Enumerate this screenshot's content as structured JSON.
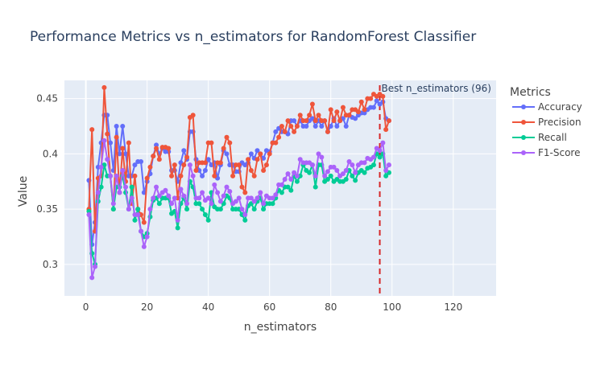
{
  "colors": {
    "background": "#ffffff",
    "plot_bg": "#e5ecf6",
    "grid": "#ffffff",
    "text": "#444444",
    "title_text": "#2a3f5f",
    "best_line": "#d62728"
  },
  "chart_data": {
    "type": "line",
    "title": "Performance Metrics vs n_estimators for RandomForest Classifier",
    "xlabel": "n_estimators",
    "ylabel": "Value",
    "xlim": [
      -7,
      134
    ],
    "ylim": [
      0.2715,
      0.4665
    ],
    "xticks": [
      0,
      20,
      40,
      60,
      80,
      100,
      120
    ],
    "xtick_labels": [
      "0",
      "20",
      "40",
      "60",
      "80",
      "100",
      "120"
    ],
    "yticks": [
      0.3,
      0.35,
      0.4,
      0.45
    ],
    "ytick_labels": [
      "0.3",
      "0.35",
      "0.4",
      "0.45"
    ],
    "grid": true,
    "legend_title": "Metrics",
    "legend_position": "right",
    "annotation": {
      "x": 96,
      "text": "Best n_estimators (96)"
    },
    "x": [
      1,
      2,
      3,
      4,
      5,
      6,
      7,
      8,
      9,
      10,
      11,
      12,
      13,
      14,
      15,
      16,
      17,
      18,
      19,
      20,
      21,
      22,
      23,
      24,
      25,
      26,
      27,
      28,
      29,
      30,
      31,
      32,
      33,
      34,
      35,
      36,
      37,
      38,
      39,
      40,
      41,
      42,
      43,
      44,
      45,
      46,
      47,
      48,
      49,
      50,
      51,
      52,
      53,
      54,
      55,
      56,
      57,
      58,
      59,
      60,
      61,
      62,
      63,
      64,
      65,
      66,
      67,
      68,
      69,
      70,
      71,
      72,
      73,
      74,
      75,
      76,
      77,
      78,
      79,
      80,
      81,
      82,
      83,
      84,
      85,
      86,
      87,
      88,
      89,
      90,
      91,
      92,
      93,
      94,
      95,
      96,
      97,
      98,
      99
    ],
    "series": [
      {
        "name": "Accuracy",
        "color": "#636efa",
        "values": [
          0.376,
          0.318,
          0.338,
          0.388,
          0.41,
          0.435,
          0.435,
          0.41,
          0.385,
          0.425,
          0.4,
          0.425,
          0.4,
          0.38,
          0.38,
          0.39,
          0.393,
          0.393,
          0.365,
          0.375,
          0.382,
          0.398,
          0.408,
          0.4,
          0.405,
          0.402,
          0.402,
          0.385,
          0.385,
          0.375,
          0.392,
          0.403,
          0.395,
          0.42,
          0.42,
          0.395,
          0.385,
          0.38,
          0.385,
          0.395,
          0.39,
          0.392,
          0.378,
          0.39,
          0.403,
          0.4,
          0.39,
          0.39,
          0.384,
          0.384,
          0.392,
          0.39,
          0.392,
          0.4,
          0.396,
          0.403,
          0.4,
          0.396,
          0.403,
          0.402,
          0.41,
          0.42,
          0.423,
          0.42,
          0.42,
          0.418,
          0.43,
          0.43,
          0.425,
          0.43,
          0.425,
          0.425,
          0.43,
          0.432,
          0.425,
          0.43,
          0.425,
          0.43,
          0.42,
          0.425,
          0.432,
          0.425,
          0.43,
          0.432,
          0.425,
          0.435,
          0.433,
          0.432,
          0.435,
          0.437,
          0.437,
          0.44,
          0.442,
          0.442,
          0.448,
          0.445,
          0.447,
          0.432,
          0.43
        ]
      },
      {
        "name": "Precision",
        "color": "#ef553b",
        "values": [
          0.35,
          0.422,
          0.33,
          0.378,
          0.38,
          0.46,
          0.418,
          0.38,
          0.35,
          0.415,
          0.365,
          0.405,
          0.375,
          0.41,
          0.355,
          0.38,
          0.35,
          0.345,
          0.338,
          0.378,
          0.388,
          0.398,
          0.405,
          0.395,
          0.406,
          0.406,
          0.405,
          0.38,
          0.39,
          0.36,
          0.38,
          0.39,
          0.397,
          0.433,
          0.435,
          0.385,
          0.392,
          0.392,
          0.392,
          0.41,
          0.41,
          0.38,
          0.392,
          0.392,
          0.405,
          0.415,
          0.41,
          0.38,
          0.39,
          0.39,
          0.37,
          0.365,
          0.395,
          0.385,
          0.38,
          0.395,
          0.4,
          0.385,
          0.39,
          0.4,
          0.41,
          0.41,
          0.415,
          0.425,
          0.42,
          0.43,
          0.425,
          0.42,
          0.425,
          0.435,
          0.43,
          0.43,
          0.435,
          0.445,
          0.43,
          0.435,
          0.43,
          0.43,
          0.42,
          0.44,
          0.43,
          0.438,
          0.43,
          0.442,
          0.435,
          0.435,
          0.44,
          0.44,
          0.438,
          0.447,
          0.44,
          0.45,
          0.45,
          0.454,
          0.452,
          0.454,
          0.452,
          0.422,
          0.43
        ]
      },
      {
        "name": "Recall",
        "color": "#00cc96",
        "values": [
          0.348,
          0.31,
          0.3,
          0.357,
          0.37,
          0.39,
          0.38,
          0.38,
          0.35,
          0.37,
          0.37,
          0.38,
          0.365,
          0.35,
          0.37,
          0.34,
          0.35,
          0.33,
          0.325,
          0.328,
          0.343,
          0.358,
          0.36,
          0.355,
          0.36,
          0.36,
          0.36,
          0.346,
          0.348,
          0.333,
          0.355,
          0.36,
          0.35,
          0.375,
          0.37,
          0.355,
          0.355,
          0.35,
          0.345,
          0.34,
          0.365,
          0.352,
          0.35,
          0.35,
          0.355,
          0.362,
          0.36,
          0.35,
          0.35,
          0.35,
          0.345,
          0.34,
          0.353,
          0.355,
          0.35,
          0.357,
          0.36,
          0.35,
          0.355,
          0.355,
          0.355,
          0.36,
          0.367,
          0.365,
          0.37,
          0.37,
          0.367,
          0.38,
          0.375,
          0.38,
          0.39,
          0.385,
          0.383,
          0.39,
          0.37,
          0.39,
          0.39,
          0.375,
          0.377,
          0.38,
          0.375,
          0.377,
          0.375,
          0.375,
          0.377,
          0.385,
          0.38,
          0.376,
          0.383,
          0.385,
          0.383,
          0.387,
          0.388,
          0.39,
          0.4,
          0.397,
          0.4,
          0.38,
          0.383
        ]
      },
      {
        "name": "F1-Score",
        "color": "#ab63fa",
        "values": [
          0.345,
          0.288,
          0.298,
          0.365,
          0.388,
          0.412,
          0.395,
          0.38,
          0.355,
          0.38,
          0.365,
          0.385,
          0.37,
          0.35,
          0.36,
          0.345,
          0.345,
          0.33,
          0.316,
          0.325,
          0.35,
          0.36,
          0.37,
          0.362,
          0.365,
          0.367,
          0.362,
          0.355,
          0.36,
          0.34,
          0.368,
          0.362,
          0.355,
          0.39,
          0.38,
          0.36,
          0.36,
          0.365,
          0.358,
          0.36,
          0.355,
          0.372,
          0.365,
          0.357,
          0.362,
          0.37,
          0.366,
          0.355,
          0.357,
          0.36,
          0.35,
          0.345,
          0.36,
          0.36,
          0.357,
          0.36,
          0.365,
          0.355,
          0.362,
          0.36,
          0.36,
          0.363,
          0.372,
          0.372,
          0.377,
          0.382,
          0.377,
          0.383,
          0.38,
          0.395,
          0.392,
          0.392,
          0.392,
          0.39,
          0.38,
          0.4,
          0.397,
          0.38,
          0.384,
          0.388,
          0.388,
          0.385,
          0.38,
          0.382,
          0.385,
          0.393,
          0.39,
          0.383,
          0.39,
          0.392,
          0.392,
          0.396,
          0.395,
          0.397,
          0.405,
          0.403,
          0.41,
          0.385,
          0.39
        ]
      }
    ]
  }
}
